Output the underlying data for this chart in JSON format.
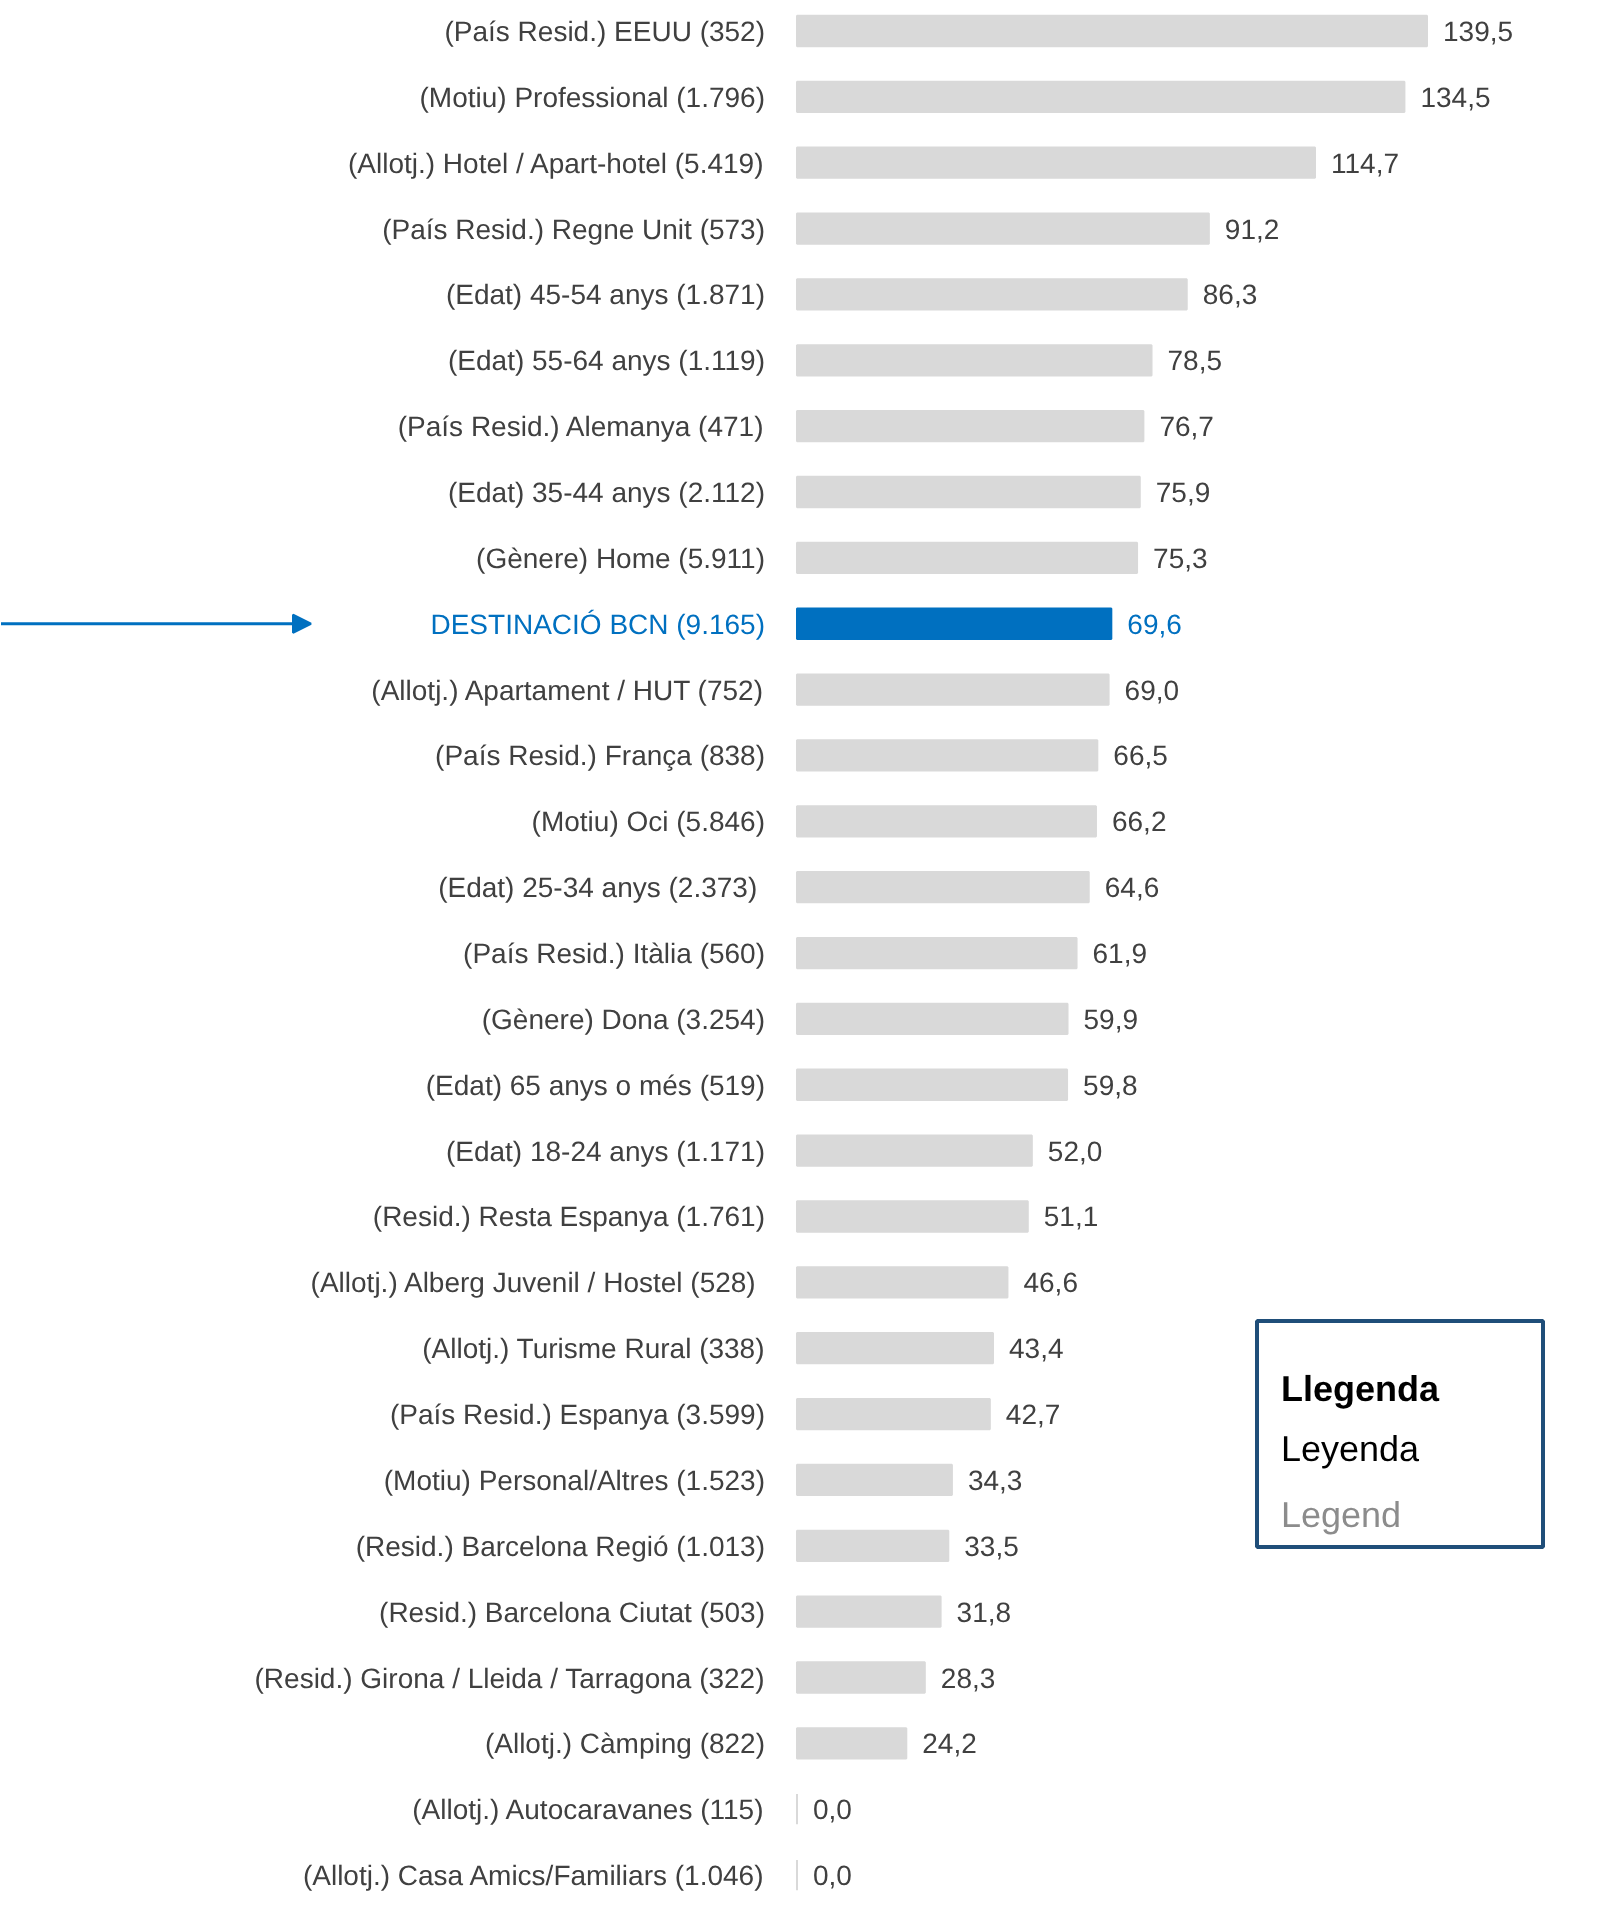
{
  "chart_data": {
    "type": "bar",
    "orientation": "horizontal",
    "categories": [
      "(País Resid.) EEUU (352)",
      "(Motiu) Professional (1.796)",
      "(Allotj.) Hotel / Apart-hotel (5.419)",
      "(País Resid.) Regne Unit (573)",
      "(Edat) 45-54 anys (1.871)",
      "(Edat) 55-64 anys (1.119)",
      "(País Resid.) Alemanya (471)",
      "(Edat) 35-44 anys (2.112)",
      "(Gènere) Home (5.911)",
      "DESTINACIÓ BCN (9.165)",
      "(Allotj.) Apartament / HUT (752)",
      "(País Resid.) França (838)",
      "(Motiu) Oci (5.846)",
      "(Edat) 25-34 anys  (2.373)",
      "(País Resid.) Itàlia (560)",
      "(Gènere) Dona (3.254)",
      "(Edat) 65 anys o més (519)",
      "(Edat) 18-24 anys (1.171)",
      "(Resid.) Resta Espanya (1.761)",
      "(Allotj.) Alberg Juvenil / Hostel  (528)",
      "(Allotj.) Turisme Rural (338)",
      "(País Resid.) Espanya (3.599)",
      "(Motiu) Personal/Altres (1.523)",
      "(Resid.) Barcelona Regió (1.013)",
      "(Resid.) Barcelona Ciutat (503)",
      "(Resid.) Girona / Lleida / Tarragona (322)",
      "(Allotj.) Càmping (822)",
      "(Allotj.) Autocaravanes (115)",
      "(Allotj.) Casa Amics/Familiars (1.046)"
    ],
    "values": [
      139.5,
      134.5,
      114.7,
      91.2,
      86.3,
      78.5,
      76.7,
      75.9,
      75.3,
      69.6,
      69.0,
      66.5,
      66.2,
      64.6,
      61.9,
      59.9,
      59.8,
      52.0,
      51.1,
      46.6,
      43.4,
      42.7,
      34.3,
      33.5,
      31.8,
      28.3,
      24.2,
      0.0,
      0.0
    ],
    "value_labels": [
      "139,5",
      "134,5",
      "114,7",
      "91,2",
      "86,3",
      "78,5",
      "76,7",
      "75,9",
      "75,3",
      "69,6",
      "69,0",
      "66,5",
      "66,2",
      "64,6",
      "61,9",
      "59,9",
      "59,8",
      "52,0",
      "51,1",
      "46,6",
      "43,4",
      "42,7",
      "34,3",
      "33,5",
      "31,8",
      "28,3",
      "24,2",
      "0,0",
      "0,0"
    ],
    "colors": [
      "#d9d9d9",
      "#d9d9d9",
      "#d9d9d9",
      "#d9d9d9",
      "#d9d9d9",
      "#d9d9d9",
      "#d9d9d9",
      "#d9d9d9",
      "#d9d9d9",
      "#0070c0",
      "#d9d9d9",
      "#d9d9d9",
      "#d9d9d9",
      "#d9d9d9",
      "#d9d9d9",
      "#d9d9d9",
      "#d9d9d9",
      "#d9d9d9",
      "#d9d9d9",
      "#d9d9d9",
      "#d9d9d9",
      "#d9d9d9",
      "#d9d9d9",
      "#d9d9d9",
      "#d9d9d9",
      "#d9d9d9",
      "#d9d9d9",
      "#d9d9d9",
      "#d9d9d9"
    ],
    "annotations": [
      "Llegenda",
      "Leyenda",
      "Legend"
    ],
    "grid": false
  }
}
